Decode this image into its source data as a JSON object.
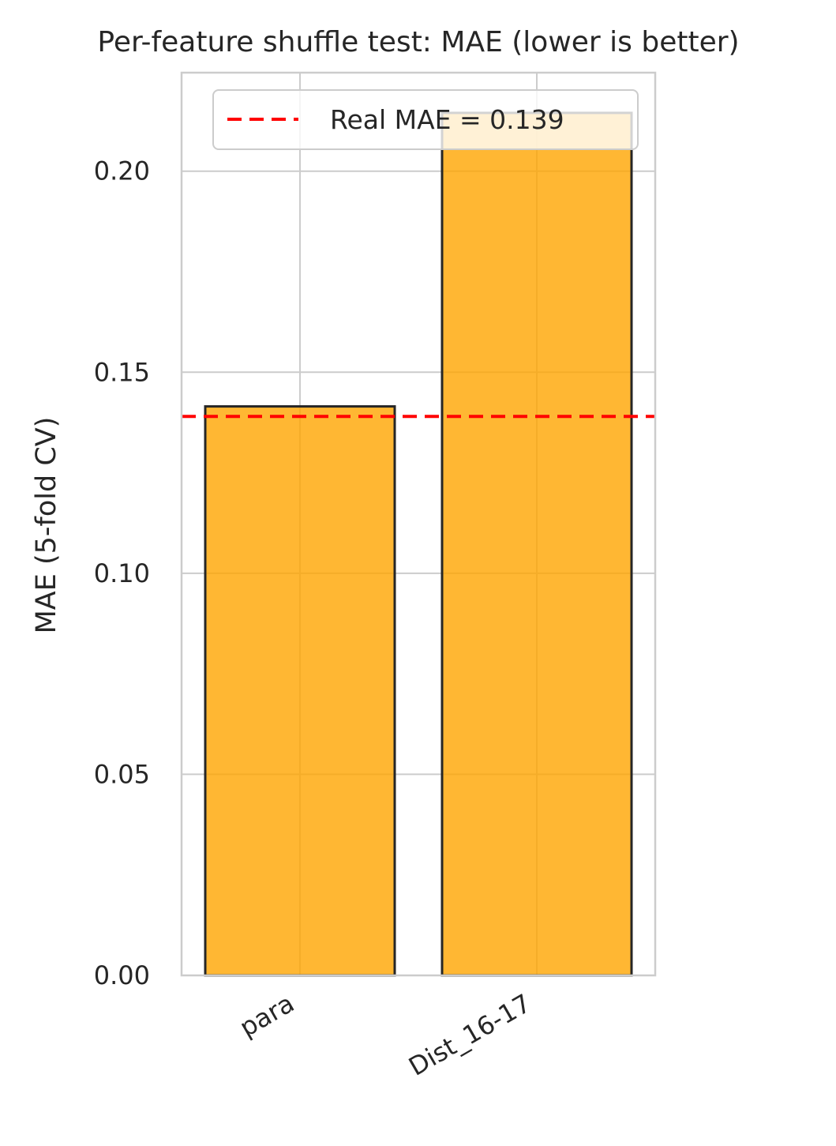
{
  "chart_data": {
    "type": "bar",
    "title": "Per-feature shuffle test: MAE (lower is better)",
    "xlabel": "",
    "ylabel": "MAE (5-fold CV)",
    "categories": [
      "para",
      "Dist_16-17"
    ],
    "values": [
      0.1415,
      0.2145
    ],
    "ylim": [
      0,
      0.2245
    ],
    "yticks": [
      0.0,
      0.05,
      0.1,
      0.15,
      0.2
    ],
    "ytick_labels": [
      "0.00",
      "0.05",
      "0.10",
      "0.15",
      "0.20"
    ],
    "bar_color": "#FFA500",
    "bar_edge_color": "#262626",
    "reference_line": {
      "value": 0.139,
      "label": "Real MAE = 0.139",
      "color": "#FF0000",
      "style": "dashed"
    },
    "legend": {
      "position": "top-right",
      "entries": [
        "Real MAE = 0.139"
      ]
    },
    "grid": true
  }
}
